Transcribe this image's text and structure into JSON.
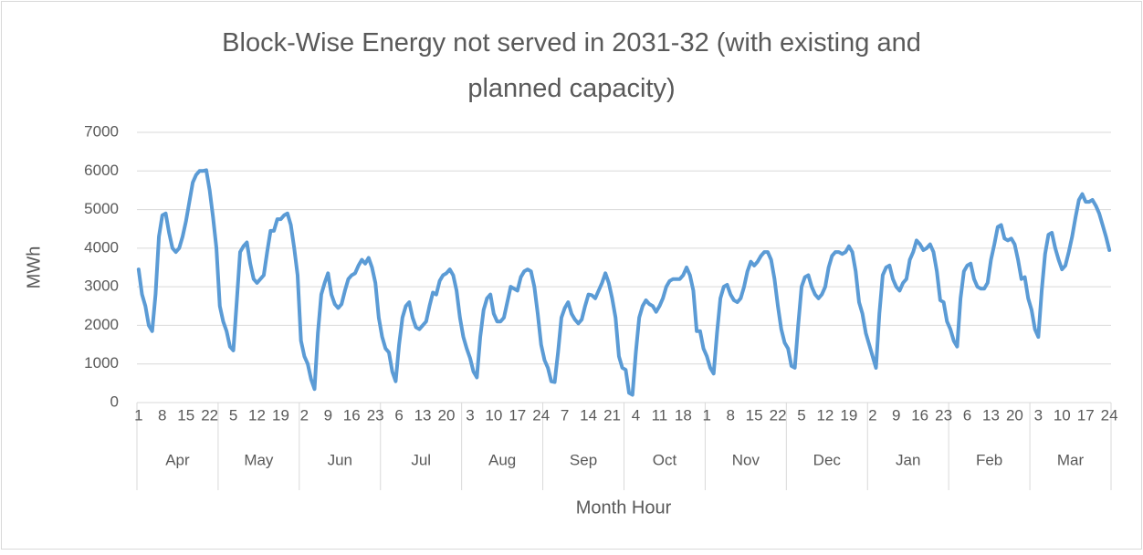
{
  "chart_data": {
    "type": "line",
    "title": "Block-Wise Energy not served in 2031-32 (with existing and planned capacity)",
    "y_label": "MWh",
    "x_label": "Month Hour",
    "months": [
      "Apr",
      "May",
      "Jun",
      "Jul",
      "Aug",
      "Sep",
      "Oct",
      "Nov",
      "Dec",
      "Jan",
      "Feb",
      "Mar"
    ],
    "categories": [
      "1",
      null,
      null,
      null,
      null,
      null,
      null,
      "8",
      null,
      null,
      null,
      null,
      null,
      null,
      "15",
      null,
      null,
      null,
      null,
      null,
      null,
      "22",
      null,
      null,
      null,
      null,
      null,
      null,
      "5",
      null,
      null,
      null,
      null,
      null,
      null,
      "12",
      null,
      null,
      null,
      null,
      null,
      null,
      "19",
      null,
      null,
      null,
      null,
      null,
      null,
      "2",
      null,
      null,
      null,
      null,
      null,
      null,
      "9",
      null,
      null,
      null,
      null,
      null,
      null,
      "16",
      null,
      null,
      null,
      null,
      null,
      null,
      "23",
      null,
      null,
      null,
      null,
      null,
      null,
      "6",
      null,
      null,
      null,
      null,
      null,
      null,
      "13",
      null,
      null,
      null,
      null,
      null,
      null,
      "20",
      null,
      null,
      null,
      null,
      null,
      null,
      "3",
      null,
      null,
      null,
      null,
      null,
      null,
      "10",
      null,
      null,
      null,
      null,
      null,
      null,
      "17",
      null,
      null,
      null,
      null,
      null,
      null,
      "24",
      null,
      null,
      null,
      null,
      null,
      null,
      "7",
      null,
      null,
      null,
      null,
      null,
      null,
      "14",
      null,
      null,
      null,
      null,
      null,
      null,
      "21",
      null,
      null,
      null,
      null,
      null,
      null,
      "4",
      null,
      null,
      null,
      null,
      null,
      null,
      "11",
      null,
      null,
      null,
      null,
      null,
      null,
      "18",
      null,
      null,
      null,
      null,
      null,
      null,
      "1",
      null,
      null,
      null,
      null,
      null,
      null,
      "8",
      null,
      null,
      null,
      null,
      null,
      null,
      "15",
      null,
      null,
      null,
      null,
      null,
      null,
      "22",
      null,
      null,
      null,
      null,
      null,
      null,
      "5",
      null,
      null,
      null,
      null,
      null,
      null,
      "12",
      null,
      null,
      null,
      null,
      null,
      null,
      "19",
      null,
      null,
      null,
      null,
      null,
      null,
      "2",
      null,
      null,
      null,
      null,
      null,
      null,
      "9",
      null,
      null,
      null,
      null,
      null,
      null,
      "16",
      null,
      null,
      null,
      null,
      null,
      null,
      "23",
      null,
      null,
      null,
      null,
      null,
      null,
      "6",
      null,
      null,
      null,
      null,
      null,
      null,
      "13",
      null,
      null,
      null,
      null,
      null,
      null,
      "20",
      null,
      null,
      null,
      null,
      null,
      null,
      "3",
      null,
      null,
      null,
      null,
      null,
      null,
      "10",
      null,
      null,
      null,
      null,
      null,
      null,
      "17",
      null,
      null,
      null,
      null,
      null,
      null,
      "24"
    ],
    "series": [
      {
        "color": "#5b9bd5",
        "values": [
          3450,
          2800,
          2500,
          2000,
          1850,
          2800,
          4300,
          4850,
          4900,
          4400,
          4000,
          3900,
          4000,
          4300,
          4700,
          5200,
          5700,
          5900,
          6000,
          6000,
          6020,
          5500,
          4800,
          4000,
          2500,
          2100,
          1850,
          1450,
          1350,
          2600,
          3900,
          4050,
          4150,
          3600,
          3200,
          3100,
          3200,
          3300,
          3900,
          4450,
          4450,
          4750,
          4750,
          4850,
          4900,
          4600,
          4000,
          3300,
          1600,
          1200,
          1000,
          600,
          350,
          1800,
          2800,
          3100,
          3350,
          2800,
          2550,
          2450,
          2550,
          2900,
          3200,
          3300,
          3350,
          3550,
          3700,
          3600,
          3750,
          3500,
          3100,
          2200,
          1700,
          1400,
          1300,
          800,
          550,
          1500,
          2200,
          2500,
          2600,
          2200,
          1950,
          1900,
          2000,
          2100,
          2500,
          2850,
          2800,
          3150,
          3300,
          3350,
          3450,
          3300,
          2900,
          2200,
          1700,
          1400,
          1150,
          800,
          650,
          1700,
          2400,
          2700,
          2800,
          2300,
          2100,
          2100,
          2200,
          2600,
          3000,
          2950,
          2900,
          3250,
          3400,
          3450,
          3400,
          3000,
          2300,
          1500,
          1100,
          900,
          550,
          530,
          1300,
          2200,
          2450,
          2600,
          2300,
          2150,
          2050,
          2150,
          2500,
          2800,
          2780,
          2700,
          2900,
          3100,
          3350,
          3100,
          2700,
          2200,
          1200,
          900,
          850,
          250,
          200,
          1300,
          2200,
          2500,
          2650,
          2550,
          2500,
          2350,
          2500,
          2700,
          3000,
          3150,
          3200,
          3200,
          3200,
          3300,
          3500,
          3300,
          2900,
          1850,
          1850,
          1400,
          1200,
          900,
          750,
          1800,
          2700,
          3000,
          3050,
          2800,
          2650,
          2600,
          2700,
          3000,
          3400,
          3650,
          3550,
          3650,
          3800,
          3900,
          3900,
          3700,
          3200,
          2500,
          1900,
          1550,
          1400,
          950,
          900,
          2000,
          3000,
          3250,
          3300,
          3000,
          2800,
          2700,
          2800,
          3000,
          3500,
          3800,
          3900,
          3900,
          3850,
          3900,
          4050,
          3900,
          3400,
          2600,
          2300,
          1800,
          1500,
          1200,
          900,
          2300,
          3300,
          3500,
          3550,
          3200,
          3000,
          2900,
          3100,
          3200,
          3700,
          3900,
          4200,
          4100,
          3950,
          4000,
          4100,
          3900,
          3400,
          2650,
          2600,
          2100,
          1900,
          1600,
          1450,
          2700,
          3400,
          3550,
          3600,
          3200,
          3000,
          2950,
          2950,
          3100,
          3700,
          4100,
          4550,
          4600,
          4250,
          4200,
          4250,
          4100,
          3700,
          3200,
          3250,
          2700,
          2400,
          1900,
          1700,
          2900,
          3850,
          4350,
          4400,
          4000,
          3700,
          3450,
          3550,
          3900,
          4300,
          4800,
          5250,
          5400,
          5200,
          5200,
          5250,
          5100,
          4900,
          4600,
          4300,
          3950
        ]
      }
    ],
    "ylim": [
      0,
      7000
    ],
    "yticks": [
      0,
      1000,
      2000,
      3000,
      4000,
      5000,
      6000,
      7000
    ],
    "grid": true
  }
}
